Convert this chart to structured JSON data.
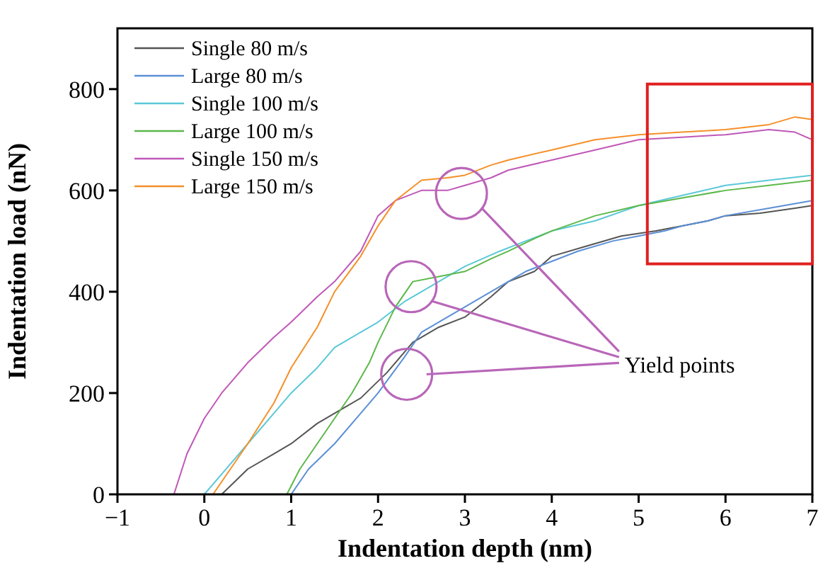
{
  "chart_data": {
    "type": "line",
    "xlabel": "Indentation depth (nm)",
    "ylabel": "Indentation load (nN)",
    "xlim": [
      -1,
      7
    ],
    "ylim": [
      0,
      920
    ],
    "xticks": [
      {
        "value": -1,
        "label": "−1"
      },
      0,
      1,
      2,
      3,
      4,
      5,
      6,
      7
    ],
    "yticks": [
      0,
      200,
      400,
      600,
      800
    ],
    "grid": false,
    "legend": "top left",
    "marker": "none",
    "line_style": "solid",
    "annotations": [
      "Yield points"
    ],
    "series": [
      {
        "name": "Single 80 m/s",
        "color": "#555555",
        "x": [
          0.2,
          0.5,
          0.8,
          1,
          1.3,
          1.6,
          1.8,
          2.1,
          2.4,
          2.7,
          3,
          3.3,
          3.5,
          3.8,
          4,
          4.4,
          4.8,
          5.2,
          5.5,
          5.8,
          6,
          6.4,
          6.8,
          7
        ],
        "values": [
          0,
          50,
          80,
          100,
          140,
          170,
          190,
          240,
          300,
          330,
          350,
          390,
          420,
          440,
          470,
          490,
          510,
          520,
          530,
          540,
          550,
          555,
          565,
          570
        ]
      },
      {
        "name": "Large 80 m/s",
        "color": "#5b8fd6",
        "x": [
          -1,
          1,
          1.2,
          1.5,
          1.8,
          2,
          2.3,
          2.5,
          2.8,
          3,
          3.3,
          3.7,
          4,
          4.3,
          4.7,
          5,
          5.3,
          5.5,
          5.8,
          6,
          6.5,
          7
        ],
        "values": [
          0,
          0,
          50,
          100,
          160,
          200,
          270,
          320,
          350,
          370,
          400,
          440,
          460,
          480,
          500,
          510,
          520,
          530,
          540,
          550,
          565,
          580
        ]
      },
      {
        "name": "Single 100 m/s",
        "color": "#5ac8d8",
        "x": [
          0,
          0.3,
          0.5,
          0.8,
          1,
          1.3,
          1.5,
          1.8,
          2,
          2.3,
          2.5,
          2.8,
          3,
          3.4,
          3.7,
          4,
          4.5,
          5,
          5.5,
          6,
          6.5,
          7
        ],
        "values": [
          0,
          60,
          100,
          160,
          200,
          250,
          290,
          320,
          340,
          380,
          400,
          430,
          450,
          480,
          500,
          520,
          540,
          570,
          590,
          610,
          620,
          630
        ]
      },
      {
        "name": "Large 100 m/s",
        "color": "#5cb84a",
        "x": [
          0.95,
          1.1,
          1.3,
          1.5,
          1.7,
          1.9,
          2,
          2.2,
          2.4,
          2.7,
          3,
          3.3,
          3.5,
          3.8,
          4,
          4.5,
          5,
          5.5,
          6,
          6.5,
          7
        ],
        "values": [
          0,
          50,
          100,
          150,
          200,
          260,
          300,
          370,
          420,
          430,
          440,
          465,
          480,
          505,
          520,
          550,
          570,
          585,
          600,
          610,
          620
        ]
      },
      {
        "name": "Single 150 m/s",
        "color": "#c058b8",
        "x": [
          -0.35,
          -0.2,
          0,
          0.2,
          0.5,
          0.8,
          1,
          1.3,
          1.5,
          1.8,
          2,
          2.2,
          2.5,
          2.8,
          3,
          3.3,
          3.5,
          4,
          4.5,
          5,
          5.5,
          6,
          6.5,
          6.8,
          7
        ],
        "values": [
          0,
          80,
          150,
          200,
          260,
          310,
          340,
          390,
          420,
          480,
          550,
          580,
          600,
          600,
          610,
          625,
          640,
          660,
          680,
          700,
          705,
          710,
          720,
          715,
          700
        ]
      },
      {
        "name": "Large 150 m/s",
        "color": "#f5902a",
        "x": [
          0.1,
          0.3,
          0.5,
          0.8,
          1,
          1.3,
          1.5,
          1.8,
          2,
          2.2,
          2.5,
          2.8,
          3,
          3.3,
          3.5,
          4,
          4.5,
          5,
          5.5,
          6,
          6.5,
          6.8,
          7
        ],
        "values": [
          0,
          50,
          100,
          180,
          250,
          330,
          400,
          470,
          530,
          580,
          620,
          625,
          630,
          650,
          660,
          680,
          700,
          710,
          715,
          720,
          730,
          745,
          740
        ]
      }
    ]
  }
}
